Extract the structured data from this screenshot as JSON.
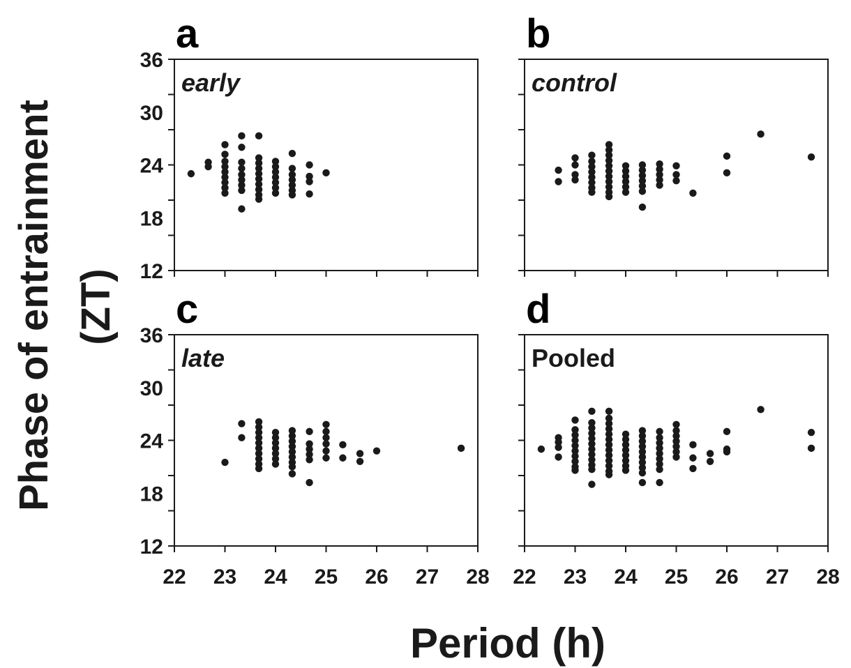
{
  "colors": {
    "ink": "#1a1a1a",
    "background": "#ffffff"
  },
  "figure": {
    "ylabel_line1": "Phase of entrainment",
    "ylabel_line2": "(ZT)",
    "xlabel": "Period (h)"
  },
  "chart_data": [
    {
      "type": "scatter",
      "panel": "a",
      "label": "early",
      "label_italic": true,
      "xlim": [
        22,
        28
      ],
      "ylim": [
        12,
        36
      ],
      "xticks": [
        "22",
        "23",
        "24",
        "25",
        "26",
        "27",
        "28"
      ],
      "yticks": [
        "12",
        "18",
        "24",
        "30",
        "36"
      ],
      "points": [
        [
          22.33,
          23.0
        ],
        [
          22.67,
          24.3
        ],
        [
          22.67,
          23.8
        ],
        [
          23.0,
          26.3
        ],
        [
          23.0,
          25.2
        ],
        [
          23.0,
          24.4
        ],
        [
          23.0,
          23.8
        ],
        [
          23.0,
          23.2
        ],
        [
          23.0,
          22.6
        ],
        [
          23.0,
          22.0
        ],
        [
          23.0,
          21.4
        ],
        [
          23.0,
          20.8
        ],
        [
          23.33,
          27.3
        ],
        [
          23.33,
          26.0
        ],
        [
          23.33,
          24.3
        ],
        [
          23.33,
          23.6
        ],
        [
          23.33,
          22.9
        ],
        [
          23.33,
          22.3
        ],
        [
          23.33,
          21.7
        ],
        [
          23.33,
          21.1
        ],
        [
          23.33,
          19.0
        ],
        [
          23.67,
          27.3
        ],
        [
          23.67,
          24.8
        ],
        [
          23.67,
          24.2
        ],
        [
          23.67,
          23.6
        ],
        [
          23.67,
          23.0
        ],
        [
          23.67,
          22.4
        ],
        [
          23.67,
          21.8
        ],
        [
          23.67,
          21.2
        ],
        [
          23.67,
          20.6
        ],
        [
          23.67,
          20.1
        ],
        [
          24.0,
          24.4
        ],
        [
          24.0,
          23.8
        ],
        [
          24.0,
          23.2
        ],
        [
          24.0,
          22.6
        ],
        [
          24.0,
          22.0
        ],
        [
          24.0,
          21.4
        ],
        [
          24.0,
          20.8
        ],
        [
          24.33,
          25.3
        ],
        [
          24.33,
          23.6
        ],
        [
          24.33,
          22.9
        ],
        [
          24.33,
          22.3
        ],
        [
          24.33,
          21.7
        ],
        [
          24.33,
          21.1
        ],
        [
          24.33,
          20.6
        ],
        [
          24.67,
          24.0
        ],
        [
          24.67,
          22.7
        ],
        [
          24.67,
          22.1
        ],
        [
          24.67,
          20.7
        ],
        [
          25.0,
          23.1
        ]
      ]
    },
    {
      "type": "scatter",
      "panel": "b",
      "label": "control",
      "label_italic": true,
      "xlim": [
        22,
        28
      ],
      "ylim": [
        12,
        36
      ],
      "xticks": [
        "22",
        "23",
        "24",
        "25",
        "26",
        "27",
        "28"
      ],
      "yticks": [],
      "points": [
        [
          22.67,
          23.4
        ],
        [
          22.67,
          22.1
        ],
        [
          23.0,
          24.8
        ],
        [
          23.0,
          24.0
        ],
        [
          23.0,
          22.9
        ],
        [
          23.0,
          22.3
        ],
        [
          23.33,
          25.1
        ],
        [
          23.33,
          24.4
        ],
        [
          23.33,
          23.8
        ],
        [
          23.33,
          23.2
        ],
        [
          23.33,
          22.6
        ],
        [
          23.33,
          22.0
        ],
        [
          23.33,
          21.4
        ],
        [
          23.33,
          20.9
        ],
        [
          23.67,
          26.3
        ],
        [
          23.67,
          25.7
        ],
        [
          23.67,
          25.1
        ],
        [
          23.67,
          24.5
        ],
        [
          23.67,
          23.9
        ],
        [
          23.67,
          23.3
        ],
        [
          23.67,
          22.7
        ],
        [
          23.67,
          22.1
        ],
        [
          23.67,
          21.5
        ],
        [
          23.67,
          20.9
        ],
        [
          23.67,
          20.4
        ],
        [
          24.0,
          23.9
        ],
        [
          24.0,
          23.3
        ],
        [
          24.0,
          22.7
        ],
        [
          24.0,
          22.1
        ],
        [
          24.0,
          21.5
        ],
        [
          24.0,
          20.9
        ],
        [
          24.33,
          24.0
        ],
        [
          24.33,
          23.4
        ],
        [
          24.33,
          22.8
        ],
        [
          24.33,
          22.2
        ],
        [
          24.33,
          21.6
        ],
        [
          24.33,
          21.0
        ],
        [
          24.33,
          19.2
        ],
        [
          24.67,
          24.1
        ],
        [
          24.67,
          23.5
        ],
        [
          24.67,
          22.9
        ],
        [
          24.67,
          22.3
        ],
        [
          24.67,
          21.7
        ],
        [
          25.0,
          23.9
        ],
        [
          25.0,
          22.9
        ],
        [
          25.0,
          22.2
        ],
        [
          25.33,
          20.8
        ],
        [
          26.0,
          25.0
        ],
        [
          26.0,
          23.1
        ],
        [
          26.67,
          27.5
        ],
        [
          27.67,
          24.9
        ]
      ]
    },
    {
      "type": "scatter",
      "panel": "c",
      "label": "late",
      "label_italic": true,
      "xlim": [
        22,
        28
      ],
      "ylim": [
        12,
        36
      ],
      "xticks": [
        "22",
        "23",
        "24",
        "25",
        "26",
        "27",
        "28"
      ],
      "yticks": [
        "12",
        "18",
        "24",
        "30",
        "36"
      ],
      "points": [
        [
          23.0,
          21.5
        ],
        [
          23.33,
          25.9
        ],
        [
          23.33,
          24.3
        ],
        [
          23.67,
          26.1
        ],
        [
          23.67,
          25.5
        ],
        [
          23.67,
          24.9
        ],
        [
          23.67,
          24.3
        ],
        [
          23.67,
          23.7
        ],
        [
          23.67,
          23.1
        ],
        [
          23.67,
          22.5
        ],
        [
          23.67,
          21.9
        ],
        [
          23.67,
          21.3
        ],
        [
          23.67,
          20.8
        ],
        [
          24.0,
          24.9
        ],
        [
          24.0,
          24.3
        ],
        [
          24.0,
          23.7
        ],
        [
          24.0,
          23.1
        ],
        [
          24.0,
          22.5
        ],
        [
          24.0,
          21.9
        ],
        [
          24.0,
          21.3
        ],
        [
          24.33,
          25.1
        ],
        [
          24.33,
          24.5
        ],
        [
          24.33,
          23.9
        ],
        [
          24.33,
          23.3
        ],
        [
          24.33,
          22.7
        ],
        [
          24.33,
          22.1
        ],
        [
          24.33,
          21.5
        ],
        [
          24.33,
          21.0
        ],
        [
          24.33,
          20.2
        ],
        [
          24.67,
          25.0
        ],
        [
          24.67,
          23.6
        ],
        [
          24.67,
          23.0
        ],
        [
          24.67,
          22.4
        ],
        [
          24.67,
          21.8
        ],
        [
          24.67,
          19.2
        ],
        [
          25.0,
          25.8
        ],
        [
          25.0,
          25.0
        ],
        [
          25.0,
          24.3
        ],
        [
          25.0,
          23.6
        ],
        [
          25.0,
          22.8
        ],
        [
          25.0,
          22.0
        ],
        [
          25.33,
          23.5
        ],
        [
          25.33,
          22.0
        ],
        [
          25.67,
          22.5
        ],
        [
          25.67,
          21.6
        ],
        [
          26.0,
          22.8
        ],
        [
          27.67,
          23.1
        ]
      ]
    },
    {
      "type": "scatter",
      "panel": "d",
      "label": "Pooled",
      "label_italic": false,
      "xlim": [
        22,
        28
      ],
      "ylim": [
        12,
        36
      ],
      "xticks": [
        "22",
        "23",
        "24",
        "25",
        "26",
        "27",
        "28"
      ],
      "yticks": [],
      "points": [
        [
          22.33,
          23.0
        ],
        [
          22.67,
          24.3
        ],
        [
          22.67,
          23.8
        ],
        [
          22.67,
          23.2
        ],
        [
          22.67,
          22.1
        ],
        [
          23.0,
          26.3
        ],
        [
          23.0,
          25.2
        ],
        [
          23.0,
          24.6
        ],
        [
          23.0,
          24.0
        ],
        [
          23.0,
          23.4
        ],
        [
          23.0,
          22.8
        ],
        [
          23.0,
          22.2
        ],
        [
          23.0,
          21.6
        ],
        [
          23.0,
          21.0
        ],
        [
          23.0,
          20.6
        ],
        [
          23.33,
          27.3
        ],
        [
          23.33,
          26.0
        ],
        [
          23.33,
          25.4
        ],
        [
          23.33,
          24.8
        ],
        [
          23.33,
          24.2
        ],
        [
          23.33,
          23.6
        ],
        [
          23.33,
          23.0
        ],
        [
          23.33,
          22.4
        ],
        [
          23.33,
          21.8
        ],
        [
          23.33,
          21.2
        ],
        [
          23.33,
          20.7
        ],
        [
          23.33,
          19.0
        ],
        [
          23.67,
          27.3
        ],
        [
          23.67,
          26.5
        ],
        [
          23.67,
          25.9
        ],
        [
          23.67,
          25.3
        ],
        [
          23.67,
          24.7
        ],
        [
          23.67,
          24.1
        ],
        [
          23.67,
          23.5
        ],
        [
          23.67,
          22.9
        ],
        [
          23.67,
          22.3
        ],
        [
          23.67,
          21.7
        ],
        [
          23.67,
          21.1
        ],
        [
          23.67,
          20.5
        ],
        [
          23.67,
          20.1
        ],
        [
          24.0,
          24.7
        ],
        [
          24.0,
          24.1
        ],
        [
          24.0,
          23.5
        ],
        [
          24.0,
          22.9
        ],
        [
          24.0,
          22.3
        ],
        [
          24.0,
          21.7
        ],
        [
          24.0,
          21.1
        ],
        [
          24.0,
          20.6
        ],
        [
          24.33,
          25.1
        ],
        [
          24.33,
          24.5
        ],
        [
          24.33,
          23.9
        ],
        [
          24.33,
          23.3
        ],
        [
          24.33,
          22.7
        ],
        [
          24.33,
          22.1
        ],
        [
          24.33,
          21.5
        ],
        [
          24.33,
          20.9
        ],
        [
          24.33,
          20.3
        ],
        [
          24.33,
          19.2
        ],
        [
          24.67,
          25.0
        ],
        [
          24.67,
          24.3
        ],
        [
          24.67,
          23.7
        ],
        [
          24.67,
          23.1
        ],
        [
          24.67,
          22.5
        ],
        [
          24.67,
          21.9
        ],
        [
          24.67,
          21.3
        ],
        [
          24.67,
          20.7
        ],
        [
          24.67,
          19.2
        ],
        [
          25.0,
          25.8
        ],
        [
          25.0,
          25.1
        ],
        [
          25.0,
          24.5
        ],
        [
          25.0,
          23.9
        ],
        [
          25.0,
          23.3
        ],
        [
          25.0,
          22.7
        ],
        [
          25.0,
          22.1
        ],
        [
          25.33,
          23.5
        ],
        [
          25.33,
          22.0
        ],
        [
          25.33,
          20.8
        ],
        [
          25.67,
          22.5
        ],
        [
          25.67,
          21.6
        ],
        [
          26.0,
          25.0
        ],
        [
          26.0,
          23.0
        ],
        [
          26.0,
          22.7
        ],
        [
          26.67,
          27.5
        ],
        [
          27.67,
          24.9
        ],
        [
          27.67,
          23.1
        ]
      ]
    }
  ]
}
